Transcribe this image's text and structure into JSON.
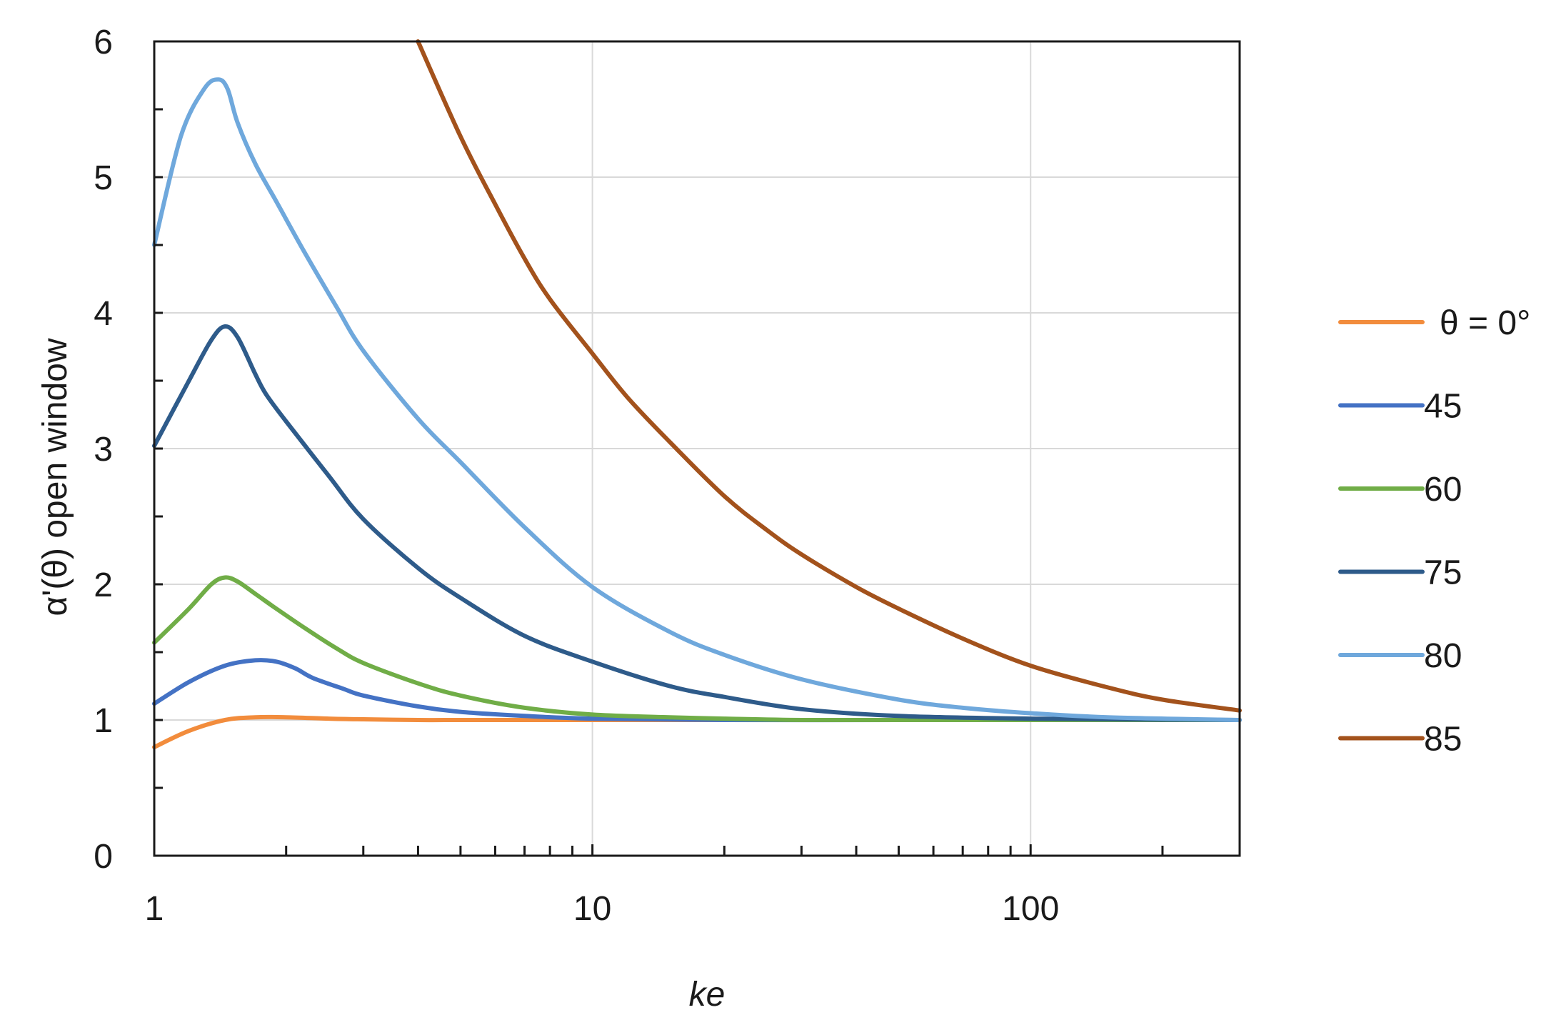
{
  "chart_data": {
    "type": "line",
    "xlabel": "ke",
    "ylabel": "α'(θ) open window",
    "xscale": "log",
    "xlim": [
      1,
      300
    ],
    "ylim": [
      0,
      6
    ],
    "grid": true,
    "legend_position": "right",
    "xticks": [
      {
        "value": 1,
        "label": "1"
      },
      {
        "value": 10,
        "label": "10"
      },
      {
        "value": 100,
        "label": "100"
      }
    ],
    "yticks": [
      {
        "value": 0,
        "label": "0"
      },
      {
        "value": 1,
        "label": "1"
      },
      {
        "value": 2,
        "label": "2"
      },
      {
        "value": 3,
        "label": "3"
      },
      {
        "value": 4,
        "label": "4"
      },
      {
        "value": 5,
        "label": "5"
      },
      {
        "value": 6,
        "label": "6"
      }
    ],
    "series": [
      {
        "name": "θ = 0°",
        "color": "#f28c3c",
        "x": [
          1,
          1.2,
          1.45,
          1.7,
          2,
          2.5,
          3,
          4,
          5,
          7,
          10,
          20,
          50,
          100,
          300
        ],
        "y": [
          0.8,
          0.92,
          1.0,
          1.02,
          1.02,
          1.01,
          1.005,
          1.0,
          1.0,
          1.0,
          1.0,
          1.0,
          1.0,
          1.0,
          1.0
        ]
      },
      {
        "name": "45",
        "color": "#4472c4",
        "x": [
          1,
          1.2,
          1.45,
          1.7,
          1.9,
          2.1,
          2.3,
          2.7,
          3,
          4,
          5,
          7,
          10,
          20,
          50,
          100,
          300
        ],
        "y": [
          1.12,
          1.28,
          1.4,
          1.44,
          1.43,
          1.38,
          1.31,
          1.23,
          1.18,
          1.1,
          1.06,
          1.03,
          1.01,
          1.0,
          1.0,
          1.0,
          1.0
        ]
      },
      {
        "name": "60",
        "color": "#70ad47",
        "x": [
          1,
          1.2,
          1.35,
          1.45,
          1.55,
          1.7,
          1.9,
          2.2,
          2.6,
          3,
          4,
          5,
          7,
          10,
          15,
          20,
          30,
          50,
          100,
          300
        ],
        "y": [
          1.57,
          1.82,
          2.0,
          2.05,
          2.02,
          1.93,
          1.82,
          1.68,
          1.53,
          1.42,
          1.27,
          1.18,
          1.09,
          1.04,
          1.02,
          1.01,
          1.0,
          1.0,
          1.0,
          1.0
        ]
      },
      {
        "name": "75",
        "color": "#2e5b8a",
        "x": [
          1,
          1.2,
          1.35,
          1.45,
          1.55,
          1.7,
          1.8,
          2.0,
          2.5,
          3,
          4,
          5,
          7,
          10,
          15,
          20,
          30,
          50,
          100,
          300
        ],
        "y": [
          3.02,
          3.5,
          3.8,
          3.9,
          3.82,
          3.55,
          3.4,
          3.2,
          2.8,
          2.48,
          2.12,
          1.9,
          1.62,
          1.43,
          1.25,
          1.17,
          1.08,
          1.03,
          1.01,
          1.0
        ]
      },
      {
        "name": "80",
        "color": "#6fa8dc",
        "x": [
          1,
          1.15,
          1.3,
          1.4,
          1.47,
          1.55,
          1.7,
          1.9,
          2.2,
          2.6,
          3,
          4,
          5,
          7,
          10,
          15,
          20,
          30,
          50,
          70,
          100,
          150,
          300
        ],
        "y": [
          4.5,
          5.3,
          5.65,
          5.72,
          5.65,
          5.4,
          5.1,
          4.82,
          4.45,
          4.05,
          3.72,
          3.22,
          2.9,
          2.42,
          1.98,
          1.65,
          1.48,
          1.3,
          1.15,
          1.09,
          1.05,
          1.02,
          1.0
        ]
      },
      {
        "name": "85",
        "color": "#a3521c",
        "x": [
          4,
          5,
          6,
          7,
          8,
          10,
          12,
          15,
          20,
          25,
          30,
          40,
          50,
          70,
          100,
          150,
          200,
          300
        ],
        "y": [
          6.0,
          5.3,
          4.8,
          4.4,
          4.1,
          3.7,
          3.38,
          3.05,
          2.65,
          2.4,
          2.22,
          1.98,
          1.82,
          1.6,
          1.4,
          1.24,
          1.15,
          1.07
        ]
      }
    ]
  }
}
